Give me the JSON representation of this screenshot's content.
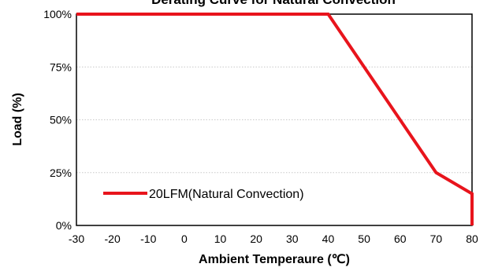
{
  "chart_data": {
    "type": "line",
    "title": "Derating Curve for Natural Convection",
    "xlabel": "Ambient Temperaure (℃)",
    "ylabel": "Load (%)",
    "xlim": [
      -30,
      80
    ],
    "ylim": [
      0,
      100
    ],
    "x_ticks": [
      "-30",
      "-20",
      "-10",
      "0",
      "10",
      "20",
      "30",
      "40",
      "50",
      "60",
      "70",
      "80"
    ],
    "y_ticks": [
      "0%",
      "25%",
      "50%",
      "75%",
      "100%"
    ],
    "grid": true,
    "legend_position": "bottom-left",
    "series": [
      {
        "name": "20LFM(Natural Convection)",
        "color": "#e8141c",
        "x": [
          -30,
          40,
          70,
          80,
          80
        ],
        "y": [
          100,
          100,
          25,
          15,
          0
        ]
      }
    ]
  }
}
